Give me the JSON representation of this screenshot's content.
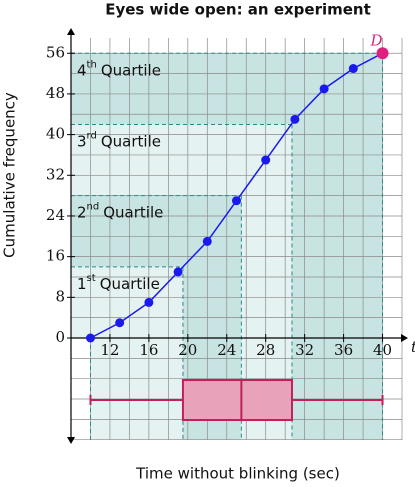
{
  "chart_data": {
    "type": "ogive",
    "title": "Eyes wide open: an experiment",
    "x_label": "Time without blinking (sec)",
    "y_label": "Cumulative frequency",
    "x_axis_symbol": "t",
    "point_label": "D",
    "x": [
      10,
      13,
      16,
      19,
      22,
      25,
      28,
      31,
      34,
      37,
      40
    ],
    "values": [
      0,
      3,
      7,
      13,
      19,
      27,
      35,
      43,
      49,
      53,
      56
    ],
    "color": "#1a1aee",
    "point_color": "#e0207f",
    "xlim": [
      8,
      42
    ],
    "ylim": [
      0,
      59
    ],
    "xticks": [
      12,
      16,
      20,
      24,
      28,
      32,
      36,
      40
    ],
    "yticks": [
      0,
      8,
      16,
      24,
      32,
      40,
      48,
      56
    ],
    "grid": {
      "x_step": 2,
      "y_step": 4
    },
    "quartile_levels": [
      14,
      28,
      42
    ],
    "quartile_labels": [
      {
        "num": "1",
        "sup": "st",
        "text": "Quartile"
      },
      {
        "num": "2",
        "sup": "nd",
        "text": "Quartile"
      },
      {
        "num": "3",
        "sup": "rd",
        "text": "Quartile"
      },
      {
        "num": "4",
        "sup": "th",
        "text": "Quartile"
      }
    ],
    "boxplot": {
      "min": 10,
      "q1": 19.5,
      "median": 25.5,
      "q3": 30.7,
      "max": 40,
      "fill": "#e8a3bb",
      "stroke": "#c2205a"
    },
    "band_colors": [
      "#e4f2f1",
      "#c8e4e2"
    ]
  }
}
